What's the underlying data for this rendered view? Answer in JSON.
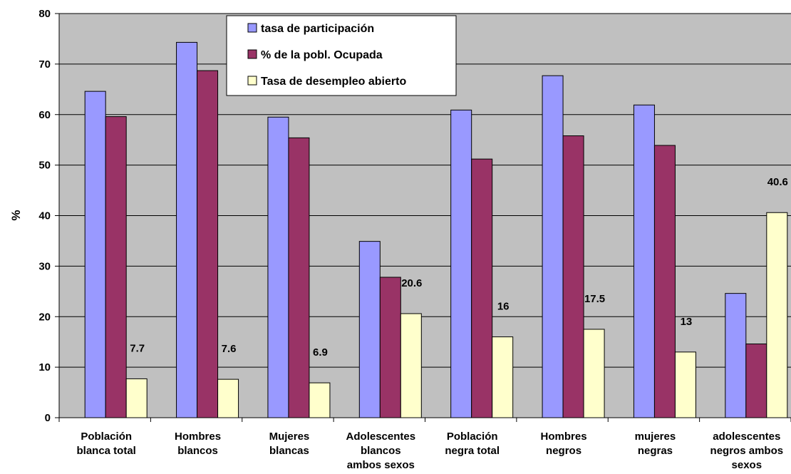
{
  "chart_data": {
    "type": "bar",
    "title": "",
    "xlabel": "",
    "ylabel": "%",
    "ylim": [
      0,
      80
    ],
    "yticks": [
      0,
      10,
      20,
      30,
      40,
      50,
      60,
      70,
      80
    ],
    "grid": true,
    "legend_position": "top-center",
    "plot_background": "#c0c0c0",
    "categories": [
      [
        "Población",
        "blanca total"
      ],
      [
        "Hombres",
        "blancos"
      ],
      [
        "Mujeres",
        "blancas"
      ],
      [
        "Adolescentes",
        "blancos",
        "ambos sexos"
      ],
      [
        "Población",
        "negra total"
      ],
      [
        "Hombres",
        "negros"
      ],
      [
        "mujeres",
        "negras"
      ],
      [
        "adolescentes",
        "negros ambos",
        "sexos"
      ]
    ],
    "series": [
      {
        "name": "tasa de participación",
        "color": "#9999ff",
        "values": [
          64.6,
          74.3,
          59.5,
          34.9,
          60.9,
          67.7,
          61.9,
          24.6
        ],
        "show_labels": false
      },
      {
        "name": "% de la pobl. Ocupada",
        "color": "#993366",
        "values": [
          59.6,
          68.7,
          55.4,
          27.8,
          51.2,
          55.8,
          53.9,
          14.6
        ],
        "show_labels": false
      },
      {
        "name": "Tasa de desempleo abierto",
        "color": "#ffffcc",
        "values": [
          7.7,
          7.6,
          6.9,
          20.6,
          16,
          17.5,
          13,
          40.6
        ],
        "show_labels": true
      }
    ]
  }
}
